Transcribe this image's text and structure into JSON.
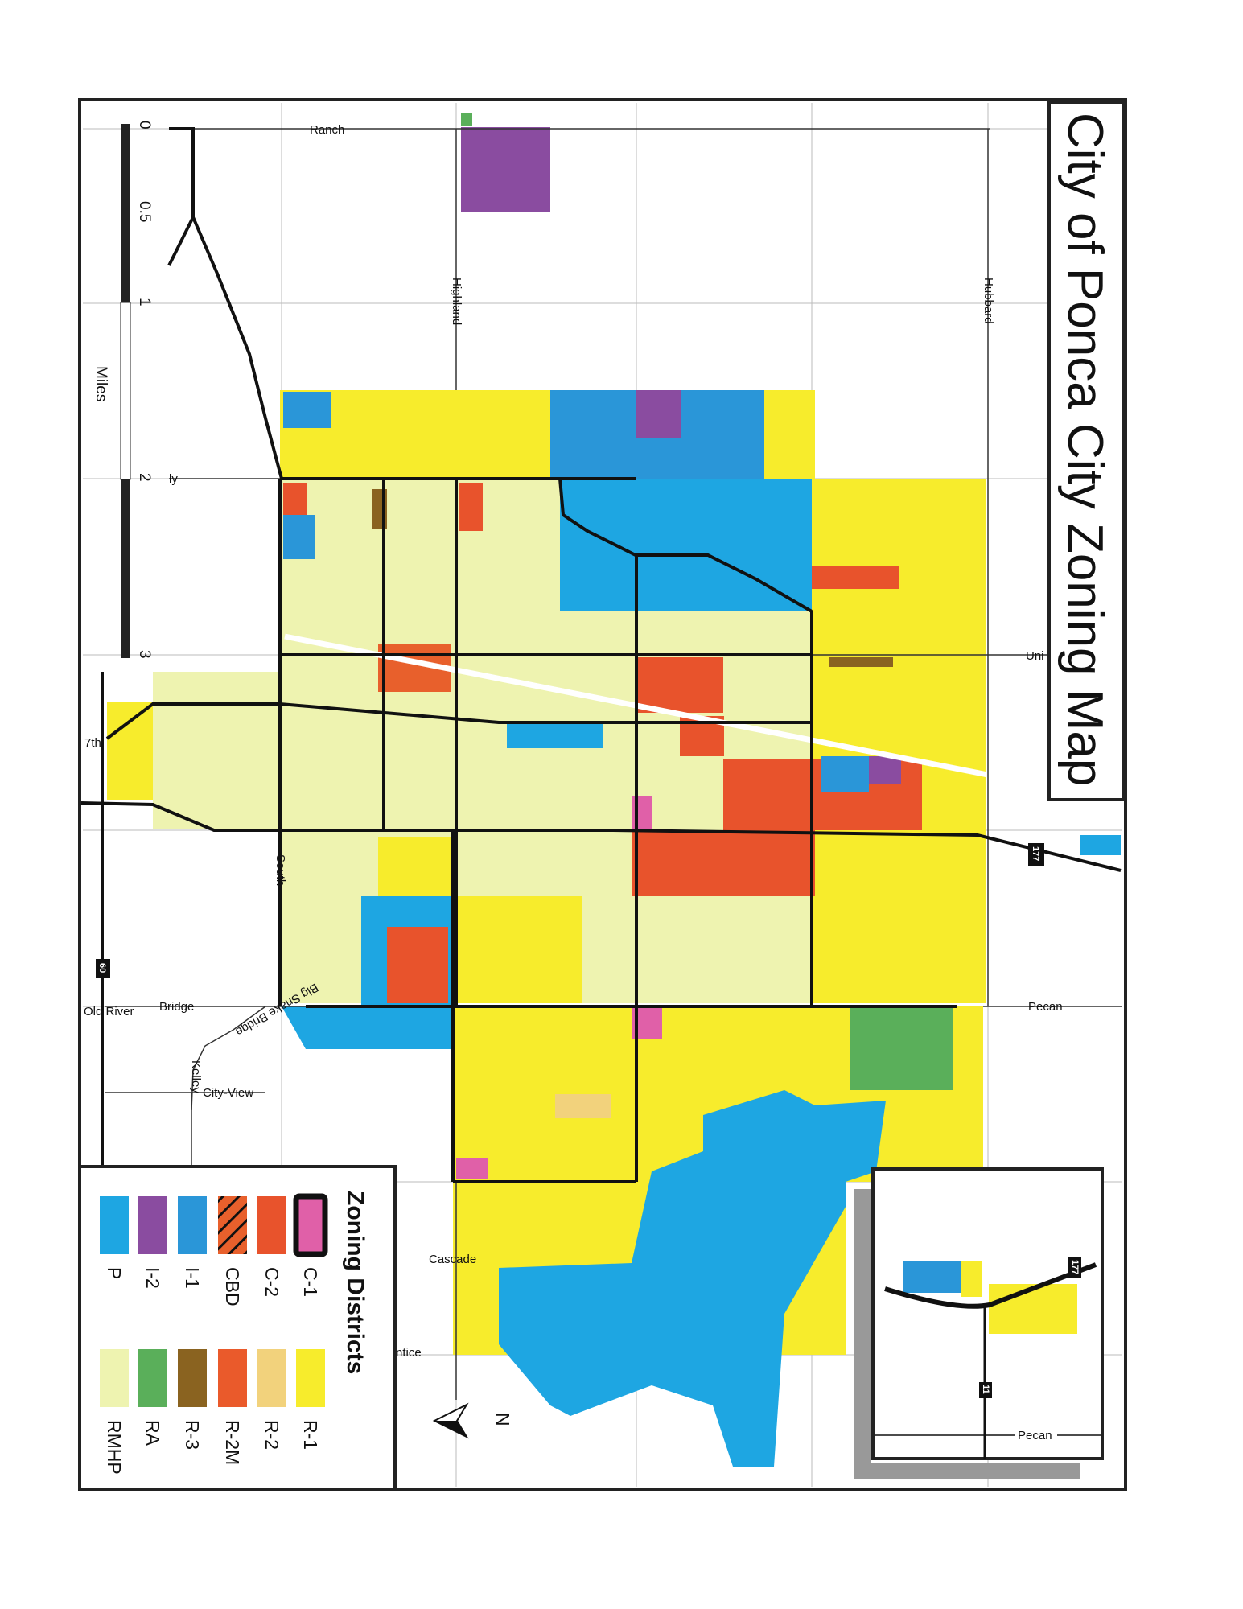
{
  "title": "City of Ponca City Zoning Map",
  "legend": {
    "title": "Zoning Districts",
    "items": [
      {
        "code": "C-1",
        "color": "#e060a8",
        "outlined": true
      },
      {
        "code": "C-2",
        "color": "#e8532c"
      },
      {
        "code": "CBD",
        "color": "#e8602c",
        "hatched": true
      },
      {
        "code": "I-1",
        "color": "#2a96d8"
      },
      {
        "code": "I-2",
        "color": "#8a4ca0"
      },
      {
        "code": "P",
        "color": "#1ea6e2"
      },
      {
        "code": "R-1",
        "color": "#f7ec2c"
      },
      {
        "code": "R-2",
        "color": "#f2d27c"
      },
      {
        "code": "R-2M",
        "color": "#ea5a2b"
      },
      {
        "code": "R-3",
        "color": "#8a6320"
      },
      {
        "code": "RA",
        "color": "#5aaf5a"
      },
      {
        "code": "RMHP",
        "color": "#eef3b0"
      }
    ]
  },
  "scale": {
    "unit": "Miles",
    "ticks": [
      "0",
      "0.5",
      "1",
      "2",
      "3"
    ]
  },
  "north_label": "N",
  "streets": {
    "ranch": "Ranch",
    "highland": "Highland",
    "hubbard": "Hubbard",
    "union": "Uni",
    "seventh": "7th",
    "south": "South",
    "pecan": "Pecan",
    "bridge": "Bridge",
    "old_river": "Old River",
    "big_snake_bridge": "Big Snake Bridge",
    "kelley": "Kelley",
    "city_view": "City-View",
    "cascade": "Cascade",
    "prentice": "ntice",
    "ly": "ly",
    "inset_pecan": "Pecan"
  },
  "routes": {
    "us177": "177",
    "us60": "60",
    "inset177": "177",
    "inset11": "11"
  }
}
